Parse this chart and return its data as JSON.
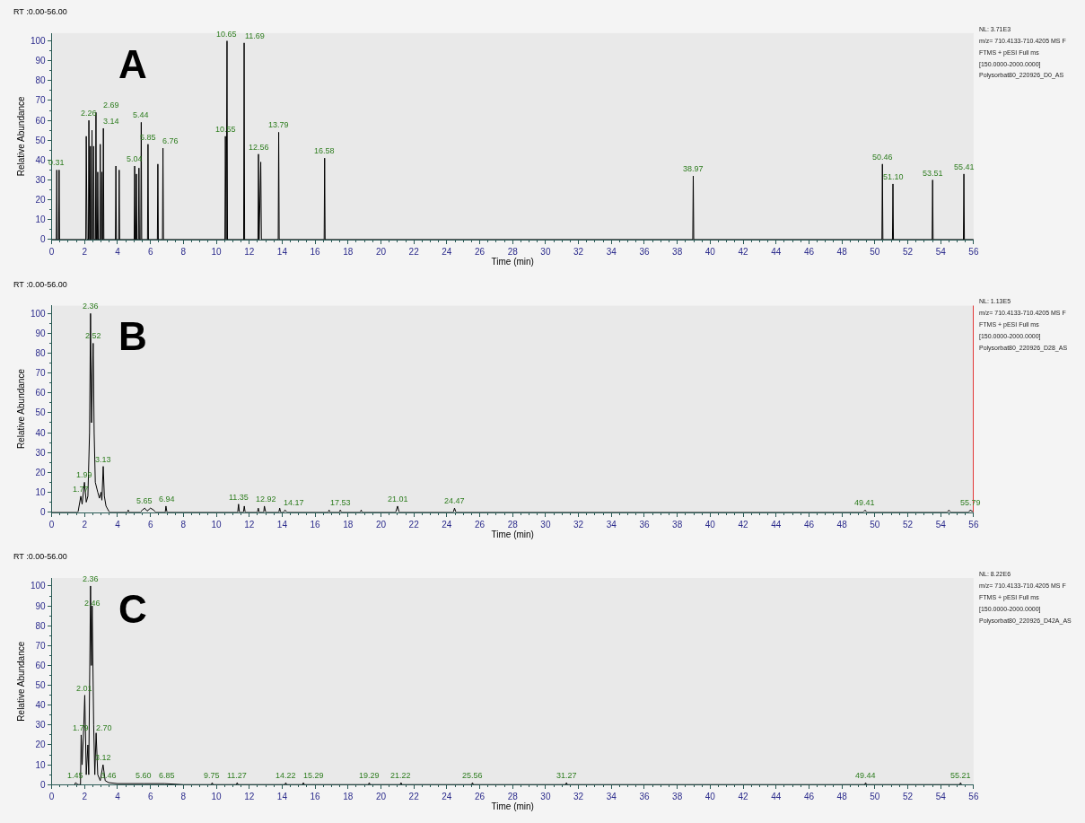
{
  "chart_data": [
    {
      "type": "line",
      "xlabel": "Time (min)",
      "ylabel": "Relative Abundance",
      "xlim": [
        0,
        56
      ],
      "xticks": [
        0,
        2,
        4,
        6,
        8,
        10,
        12,
        14,
        16,
        18,
        20,
        22,
        24,
        26,
        28,
        30,
        32,
        34,
        36,
        38,
        40,
        42,
        44,
        46,
        48,
        50,
        52,
        54,
        56
      ],
      "ylim": [
        0,
        104
      ],
      "yticks": [
        0,
        10,
        20,
        30,
        40,
        50,
        60,
        70,
        80,
        90,
        100
      ],
      "grid": false,
      "marker": "none",
      "line_style": "solid",
      "series": [
        {
          "color": "#000000",
          "x": [
            0,
            0.28,
            0.31,
            0.34,
            0.42,
            0.45,
            0.48,
            2.07,
            2.1,
            2.15,
            2.23,
            2.26,
            2.3,
            2.33,
            2.35,
            2.38,
            2.42,
            2.45,
            2.48,
            2.52,
            2.55,
            2.58,
            2.66,
            2.69,
            2.72,
            2.77,
            2.8,
            2.83,
            2.92,
            2.95,
            2.98,
            3.02,
            3.05,
            3.08,
            3.11,
            3.14,
            3.17,
            3.87,
            3.9,
            3.93,
            4.07,
            4.1,
            4.13,
            5.01,
            5.04,
            5.07,
            5.12,
            5.15,
            5.18,
            5.27,
            5.3,
            5.33,
            5.41,
            5.44,
            5.47,
            5.82,
            5.85,
            5.88,
            6.42,
            6.45,
            6.48,
            6.73,
            6.76,
            6.79,
            10.52,
            10.55,
            10.6,
            10.65,
            10.68,
            11.66,
            11.69,
            11.72,
            12.53,
            12.56,
            12.6,
            12.7,
            12.74,
            13.76,
            13.79,
            13.82,
            16.55,
            16.58,
            16.61,
            38.94,
            38.97,
            39.0,
            50.43,
            50.46,
            50.49,
            51.07,
            51.1,
            51.13,
            53.48,
            53.51,
            53.54,
            55.38,
            55.41,
            55.44,
            56
          ],
          "values": [
            0,
            0,
            35,
            0,
            0,
            35,
            0,
            0,
            52,
            0,
            0,
            60,
            0,
            0,
            47,
            0,
            0,
            55,
            0,
            0,
            47,
            0,
            0,
            64,
            0,
            0,
            34,
            0,
            0,
            48,
            0,
            0,
            34,
            0,
            0,
            56,
            0,
            0,
            37,
            0,
            0,
            35,
            0,
            0,
            37,
            0,
            0,
            33,
            0,
            0,
            36,
            0,
            0,
            59,
            0,
            0,
            48,
            0,
            0,
            38,
            0,
            0,
            46,
            0,
            0,
            52,
            0,
            100,
            0,
            0,
            99,
            0,
            0,
            43,
            0,
            39,
            0,
            0,
            54,
            0,
            0,
            41,
            0,
            0,
            32,
            0,
            0,
            38,
            0,
            0,
            28,
            0,
            0,
            30,
            0,
            0,
            33,
            0,
            0
          ]
        }
      ],
      "annotations": [
        "RT :0.00-56.00",
        "A",
        "NL: 3.71E3",
        "m/z= 710.4133-710.4205 MS F",
        "FTMS + pESI Full ms",
        "[150.0000-2000.0000]",
        "Polysorbat80_220926_D0_AS",
        {
          "text": "0.31",
          "x": 0.31,
          "y": 35
        },
        {
          "text": "2.26",
          "x": 2.26,
          "y": 60
        },
        {
          "text": "2.69",
          "x": 2.69,
          "y": 64
        },
        {
          "text": "3.14",
          "x": 3.14,
          "y": 56
        },
        {
          "text": "5.04",
          "x": 5.04,
          "y": 37
        },
        {
          "text": "5.44",
          "x": 5.44,
          "y": 59
        },
        {
          "text": "5.85",
          "x": 5.85,
          "y": 48
        },
        {
          "text": "6.76",
          "x": 6.76,
          "y": 46
        },
        {
          "text": "10.55",
          "x": 10.55,
          "y": 52
        },
        {
          "text": "10.65",
          "x": 10.65,
          "y": 100
        },
        {
          "text": "11.69",
          "x": 11.69,
          "y": 99
        },
        {
          "text": "12.56",
          "x": 12.56,
          "y": 43
        },
        {
          "text": "13.79",
          "x": 13.79,
          "y": 54
        },
        {
          "text": "16.58",
          "x": 16.58,
          "y": 41
        },
        {
          "text": "38.97",
          "x": 38.97,
          "y": 32
        },
        {
          "text": "50.46",
          "x": 50.46,
          "y": 38
        },
        {
          "text": "51.10",
          "x": 51.1,
          "y": 28
        },
        {
          "text": "53.51",
          "x": 53.51,
          "y": 30
        },
        {
          "text": "55.41",
          "x": 55.41,
          "y": 33
        }
      ]
    },
    {
      "type": "line",
      "xlabel": "Time (min)",
      "ylabel": "Relative Abundance",
      "xlim": [
        0,
        56
      ],
      "xticks": [
        0,
        2,
        4,
        6,
        8,
        10,
        12,
        14,
        16,
        18,
        20,
        22,
        24,
        26,
        28,
        30,
        32,
        34,
        36,
        38,
        40,
        42,
        44,
        46,
        48,
        50,
        52,
        54,
        56
      ],
      "ylim": [
        0,
        104
      ],
      "yticks": [
        0,
        10,
        20,
        30,
        40,
        50,
        60,
        70,
        80,
        90,
        100
      ],
      "grid": false,
      "marker": "none",
      "line_style": "solid",
      "series": [
        {
          "color": "#000000",
          "x": [
            0,
            1.6,
            1.77,
            1.85,
            1.99,
            2.1,
            2.2,
            2.3,
            2.36,
            2.42,
            2.52,
            2.58,
            2.65,
            2.8,
            2.9,
            3.0,
            3.05,
            3.13,
            3.2,
            3.3,
            3.5,
            4.6,
            4.65,
            4.7,
            5.4,
            5.5,
            5.65,
            5.8,
            6.0,
            6.2,
            6.3,
            6.9,
            6.94,
            7.0,
            11.3,
            11.35,
            11.4,
            11.65,
            11.7,
            11.75,
            12.5,
            12.55,
            12.6,
            12.88,
            12.92,
            13.0,
            13.8,
            13.85,
            13.9,
            14.1,
            14.17,
            14.3,
            16.8,
            16.85,
            16.9,
            17.48,
            17.53,
            17.6,
            18.75,
            18.8,
            18.85,
            20.9,
            21.01,
            21.1,
            24.4,
            24.47,
            24.55,
            49.3,
            49.41,
            49.5,
            54.4,
            54.5,
            54.6,
            55.7,
            55.79,
            56
          ],
          "values": [
            0,
            0,
            8,
            4,
            15,
            5,
            8,
            40,
            100,
            45,
            85,
            40,
            15,
            10,
            7,
            10,
            6,
            23,
            8,
            3,
            0,
            0,
            1,
            0,
            0,
            1,
            2,
            0.5,
            2,
            1,
            0,
            0,
            3,
            0,
            0,
            4,
            0,
            0,
            3,
            0,
            0,
            2,
            0,
            0,
            3,
            0,
            0,
            2,
            0,
            0,
            1,
            0,
            0,
            1,
            0,
            0,
            1,
            0,
            0,
            1,
            0,
            0,
            3,
            0,
            0,
            2,
            0,
            0,
            1,
            0,
            0,
            1,
            0,
            0,
            1,
            0
          ]
        }
      ],
      "ref_lines": [
        {
          "axis": "x",
          "value": 56,
          "color": "#e00000"
        }
      ],
      "annotations": [
        "RT :0.00-56.00",
        "B",
        "NL: 1.13E5",
        "m/z= 710.4133-710.4205 MS F",
        "FTMS + pESI Full ms",
        "[150.0000-2000.0000]",
        "Polysorbat80_220926_D28_AS",
        {
          "text": "1.77",
          "x": 1.77,
          "y": 8
        },
        {
          "text": "1.99",
          "x": 1.99,
          "y": 15
        },
        {
          "text": "2.36",
          "x": 2.36,
          "y": 100
        },
        {
          "text": "2.52",
          "x": 2.52,
          "y": 85
        },
        {
          "text": "3.13",
          "x": 3.13,
          "y": 23
        },
        {
          "text": "5.65",
          "x": 5.65,
          "y": 2
        },
        {
          "text": "6.94",
          "x": 6.94,
          "y": 3
        },
        {
          "text": "11.35",
          "x": 11.35,
          "y": 4
        },
        {
          "text": "12.92",
          "x": 12.92,
          "y": 3
        },
        {
          "text": "14.17",
          "x": 14.17,
          "y": 1
        },
        {
          "text": "17.53",
          "x": 17.53,
          "y": 1
        },
        {
          "text": "21.01",
          "x": 21.01,
          "y": 3
        },
        {
          "text": "24.47",
          "x": 24.47,
          "y": 2
        },
        {
          "text": "49.41",
          "x": 49.41,
          "y": 1
        },
        {
          "text": "55.79",
          "x": 55.79,
          "y": 1
        }
      ]
    },
    {
      "type": "line",
      "xlabel": "Time (min)",
      "ylabel": "Relative Abundance",
      "xlim": [
        0,
        56
      ],
      "xticks": [
        0,
        2,
        4,
        6,
        8,
        10,
        12,
        14,
        16,
        18,
        20,
        22,
        24,
        26,
        28,
        30,
        32,
        34,
        36,
        38,
        40,
        42,
        44,
        46,
        48,
        50,
        52,
        54,
        56
      ],
      "ylim": [
        0,
        104
      ],
      "yticks": [
        0,
        10,
        20,
        30,
        40,
        50,
        60,
        70,
        80,
        90,
        100
      ],
      "grid": false,
      "marker": "none",
      "line_style": "solid",
      "series": [
        {
          "color": "#000000",
          "x": [
            1.4,
            1.45,
            1.6,
            1.75,
            1.79,
            1.85,
            1.95,
            2.01,
            2.1,
            2.2,
            2.25,
            2.36,
            2.41,
            2.46,
            2.55,
            2.62,
            2.7,
            2.8,
            2.95,
            3.12,
            3.25,
            3.46,
            4.0,
            5.6,
            6.85,
            8.0,
            9.7,
            9.75,
            9.8,
            11.22,
            11.27,
            11.32,
            14.17,
            14.22,
            14.27,
            15.24,
            15.29,
            15.34,
            19.24,
            19.29,
            19.34,
            21.17,
            21.22,
            21.27,
            25.51,
            25.56,
            25.61,
            31.22,
            31.27,
            31.32,
            49.39,
            49.44,
            49.49,
            55.16,
            55.21,
            55.26
          ],
          "values": [
            0,
            1,
            0,
            0,
            25,
            10,
            30,
            45,
            5,
            20,
            5,
            100,
            60,
            90,
            30,
            5,
            26,
            5,
            2,
            10,
            2,
            1,
            0.5,
            0.5,
            0.5,
            0,
            0,
            1,
            0,
            0,
            1,
            0,
            0,
            1,
            0,
            0,
            1,
            0,
            0,
            1,
            0,
            0,
            1,
            0,
            0,
            1,
            0,
            0,
            1,
            0,
            0,
            1,
            0,
            0,
            1,
            0
          ]
        }
      ],
      "annotations": [
        "RT :0.00-56.00",
        "C",
        "NL: 8.22E6",
        "m/z= 710.4133-710.4205 MS F",
        "FTMS + pESI Full ms",
        "[150.0000-2000.0000]",
        "Polysorbat80_220926_D42A_AS",
        {
          "text": "1.45",
          "x": 1.45,
          "y": 1
        },
        {
          "text": "1.79",
          "x": 1.79,
          "y": 25
        },
        {
          "text": "2.01",
          "x": 2.01,
          "y": 45
        },
        {
          "text": "2.36",
          "x": 2.36,
          "y": 100
        },
        {
          "text": "2.46",
          "x": 2.46,
          "y": 88
        },
        {
          "text": "2.70",
          "x": 2.7,
          "y": 25
        },
        {
          "text": "3.12",
          "x": 3.12,
          "y": 10
        },
        {
          "text": "3.46",
          "x": 3.46,
          "y": 1
        },
        {
          "text": "5.60",
          "x": 5.6,
          "y": 1
        },
        {
          "text": "6.85",
          "x": 6.85,
          "y": 1
        },
        {
          "text": "9.75",
          "x": 9.75,
          "y": 1
        },
        {
          "text": "11.27",
          "x": 11.27,
          "y": 1
        },
        {
          "text": "14.22",
          "x": 14.22,
          "y": 1
        },
        {
          "text": "15.29",
          "x": 15.29,
          "y": 1
        },
        {
          "text": "19.29",
          "x": 19.29,
          "y": 1
        },
        {
          "text": "21.22",
          "x": 21.22,
          "y": 1
        },
        {
          "text": "25.56",
          "x": 25.56,
          "y": 1
        },
        {
          "text": "31.27",
          "x": 31.27,
          "y": 1
        },
        {
          "text": "49.44",
          "x": 49.44,
          "y": 1
        },
        {
          "text": "55.21",
          "x": 55.21,
          "y": 1
        }
      ]
    }
  ]
}
